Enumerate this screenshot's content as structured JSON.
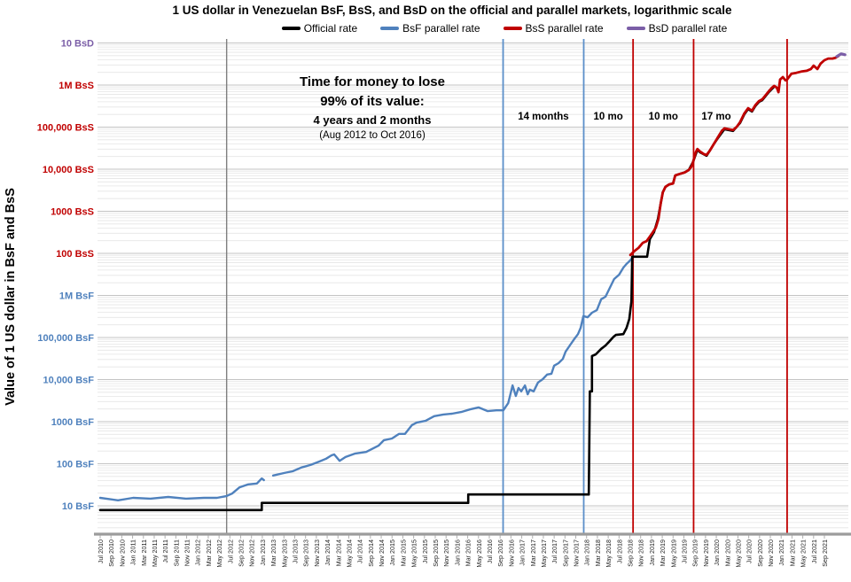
{
  "title": "1 US dollar in Venezuelan BsF, BsS, and BsD on the official and parallel markets, logarithmic scale",
  "y_axis_title": "Value of 1 US dollar in BsF and BsS",
  "legend": {
    "items": [
      {
        "label": "Official rate",
        "color": "#000000"
      },
      {
        "label": "BsF parallel rate",
        "color": "#4f81bd"
      },
      {
        "label": "BsS parallel rate",
        "color": "#c00000"
      },
      {
        "label": "BsD parallel rate",
        "color": "#7b5ea7"
      }
    ]
  },
  "annotation": {
    "lines": [
      "Time for money to lose",
      "99% of its value:",
      "4 years and 2 months",
      "(Aug 2012 to Oct 2016)"
    ]
  },
  "period_labels": [
    {
      "label": "14 months",
      "months": 82.0
    },
    {
      "label": "10 mo",
      "months": 94.0
    },
    {
      "label": "10 mo",
      "months": 104.2
    },
    {
      "label": "17 mo",
      "months": 114.0
    }
  ],
  "chart_data": {
    "type": "line",
    "log_scale": true,
    "x_unit": "months since Jul 2010 (tick step = 2 months)",
    "y_unit": "log10 of bolivares fuertes (BsF) per USD; 1 BsS = 100,000 BsF; 1 BsD = 1,000,000 BsS",
    "x_tick_labels": [
      "Jul 2010",
      "Sep 2010",
      "Nov 2010",
      "Jan 2011",
      "Mar 2011",
      "May 2011",
      "Jul 2011",
      "Sep 2011",
      "Nov 2011",
      "Jan 2012",
      "Mar 2012",
      "May 2012",
      "Jul 2012",
      "Sep 2012",
      "Nov 2012",
      "Jan 2013",
      "Mar 2013",
      "May 2013",
      "Jul 2013",
      "Sep 2013",
      "Nov 2013",
      "Jan 2014",
      "Mar 2014",
      "May 2014",
      "Jul 2014",
      "Sep 2014",
      "Nov 2014",
      "Jan 2015",
      "Mar 2015",
      "May 2015",
      "Jul 2015",
      "Sep 2015",
      "Nov 2015",
      "Jan 2016",
      "Mar 2016",
      "May 2016",
      "Jul 2016",
      "Sep 2016",
      "Nov 2016",
      "Jan 2017",
      "Mar 2017",
      "May 2017",
      "Jul 2017",
      "Sep 2017",
      "Nov 2017",
      "Jan 2018",
      "Mar 2018",
      "May 2018",
      "Jul 2018",
      "Sep 2018",
      "Nov 2018",
      "Jan 2019",
      "Mar 2019",
      "May 2019",
      "Jul 2019",
      "Sep 2019",
      "Nov 2019",
      "Jan 2020",
      "Mar 2020",
      "May 2020",
      "Jul 2020",
      "Sep 2020",
      "Nov 2020",
      "Jan 2021",
      "Mar 2021",
      "May 2021",
      "Jul 2021",
      "Sep 2021"
    ],
    "y_tick_labels": [
      {
        "text": "10 BsD",
        "color": "#7b5ea7",
        "log10_bsf": 12
      },
      {
        "text": "1M BsS",
        "color": "#c00000",
        "log10_bsf": 11
      },
      {
        "text": "100,000 BsS",
        "color": "#c00000",
        "log10_bsf": 10
      },
      {
        "text": "10,000 BsS",
        "color": "#c00000",
        "log10_bsf": 9
      },
      {
        "text": "1000 BsS",
        "color": "#c00000",
        "log10_bsf": 8
      },
      {
        "text": "100 BsS",
        "color": "#c00000",
        "log10_bsf": 7
      },
      {
        "text": "1M BsF",
        "color": "#4f81bd",
        "log10_bsf": 6
      },
      {
        "text": "100,000 BsF",
        "color": "#4f81bd",
        "log10_bsf": 5
      },
      {
        "text": "10,000 BsF",
        "color": "#4f81bd",
        "log10_bsf": 4
      },
      {
        "text": "1000 BsF",
        "color": "#4f81bd",
        "log10_bsf": 3
      },
      {
        "text": "100 BsF",
        "color": "#4f81bd",
        "log10_bsf": 2
      },
      {
        "text": "10 BsF",
        "color": "#4f81bd",
        "log10_bsf": 1
      }
    ],
    "reference_lines": [
      {
        "months": 23.4,
        "color": "#7f7f7f",
        "width": 1.4
      },
      {
        "months": 74.55,
        "color": "#5b8fc9",
        "width": 1.8
      },
      {
        "months": 89.47,
        "color": "#5b8fc9",
        "width": 1.8
      },
      {
        "months": 98.6,
        "color": "#c00000",
        "width": 1.8
      },
      {
        "months": 109.8,
        "color": "#c00000",
        "width": 1.8
      },
      {
        "months": 127.1,
        "color": "#c00000",
        "width": 1.8
      }
    ],
    "series": [
      {
        "name": "BsF parallel rate",
        "color": "#4f81bd",
        "width": 2.4,
        "segments": [
          [
            [
              0,
              1.19
            ],
            [
              3.3,
              1.13
            ],
            [
              6.1,
              1.19
            ],
            [
              9.3,
              1.17
            ],
            [
              12.6,
              1.21
            ],
            [
              15.9,
              1.17
            ],
            [
              19.2,
              1.19
            ],
            [
              21.6,
              1.19
            ],
            [
              23.3,
              1.23
            ],
            [
              24.4,
              1.29
            ],
            [
              25.8,
              1.44
            ],
            [
              27.4,
              1.51
            ],
            [
              29.0,
              1.53
            ],
            [
              29.9,
              1.65
            ],
            [
              30.3,
              1.61
            ]
          ],
          [
            [
              32.0,
              1.72
            ],
            [
              34.0,
              1.78
            ],
            [
              35.6,
              1.82
            ],
            [
              37.2,
              1.91
            ],
            [
              38.9,
              1.97
            ],
            [
              40.5,
              2.05
            ],
            [
              41.8,
              2.12
            ],
            [
              42.8,
              2.2
            ],
            [
              43.3,
              2.22
            ],
            [
              44.3,
              2.07
            ],
            [
              45.4,
              2.16
            ],
            [
              47.1,
              2.24
            ],
            [
              49.2,
              2.28
            ],
            [
              51.5,
              2.43
            ],
            [
              52.5,
              2.56
            ],
            [
              54.0,
              2.6
            ],
            [
              55.3,
              2.71
            ],
            [
              56.4,
              2.71
            ],
            [
              57.7,
              2.92
            ],
            [
              58.6,
              2.98
            ],
            [
              60.2,
              3.02
            ],
            [
              61.8,
              3.13
            ],
            [
              63.5,
              3.17
            ],
            [
              65.1,
              3.19
            ],
            [
              66.8,
              3.23
            ],
            [
              68.4,
              3.29
            ],
            [
              70.0,
              3.34
            ],
            [
              71.7,
              3.25
            ],
            [
              73.3,
              3.27
            ],
            [
              74.6,
              3.27
            ],
            [
              75.5,
              3.44
            ],
            [
              76.3,
              3.86
            ],
            [
              76.9,
              3.61
            ],
            [
              77.4,
              3.8
            ],
            [
              77.9,
              3.72
            ],
            [
              78.6,
              3.86
            ],
            [
              79.1,
              3.65
            ],
            [
              79.5,
              3.76
            ],
            [
              80.2,
              3.72
            ],
            [
              81.0,
              3.93
            ],
            [
              81.9,
              4.01
            ],
            [
              82.7,
              4.12
            ],
            [
              83.5,
              4.14
            ],
            [
              84.0,
              4.33
            ],
            [
              84.8,
              4.39
            ],
            [
              85.6,
              4.49
            ],
            [
              86.1,
              4.66
            ],
            [
              86.9,
              4.81
            ],
            [
              87.7,
              4.96
            ],
            [
              88.4,
              5.08
            ],
            [
              88.9,
              5.23
            ],
            [
              89.4,
              5.51
            ],
            [
              90.2,
              5.48
            ],
            [
              91.0,
              5.59
            ],
            [
              91.9,
              5.65
            ],
            [
              92.7,
              5.91
            ],
            [
              93.5,
              5.97
            ],
            [
              94.3,
              6.18
            ],
            [
              95.1,
              6.39
            ],
            [
              96.0,
              6.49
            ],
            [
              96.8,
              6.66
            ],
            [
              97.4,
              6.75
            ],
            [
              97.9,
              6.81
            ],
            [
              98.3,
              6.87
            ]
          ]
        ]
      },
      {
        "name": "Official rate",
        "color": "#000000",
        "width": 2.6,
        "segments": [
          [
            [
              0,
              0.9
            ],
            [
              29.9,
              0.9
            ],
            [
              29.9,
              1.07
            ],
            [
              68.1,
              1.07
            ],
            [
              68.1,
              1.27
            ],
            [
              90.4,
              1.27
            ],
            [
              90.6,
              3.72
            ],
            [
              91.0,
              3.72
            ],
            [
              91.0,
              4.56
            ],
            [
              91.7,
              4.6
            ],
            [
              92.7,
              4.73
            ],
            [
              93.5,
              4.81
            ],
            [
              94.1,
              4.89
            ],
            [
              95.0,
              5.02
            ],
            [
              95.4,
              5.06
            ],
            [
              96.8,
              5.08
            ],
            [
              97.4,
              5.23
            ],
            [
              97.9,
              5.44
            ],
            [
              98.3,
              5.86
            ],
            [
              98.45,
              6.92
            ],
            [
              101.2,
              6.92
            ],
            [
              101.7,
              7.34
            ],
            [
              102.5,
              7.51
            ],
            [
              103.2,
              7.82
            ],
            [
              103.7,
              8.18
            ],
            [
              104.1,
              8.45
            ],
            [
              104.6,
              8.58
            ],
            [
              105.3,
              8.64
            ],
            [
              106.0,
              8.66
            ],
            [
              106.4,
              8.85
            ],
            [
              107.3,
              8.89
            ],
            [
              108.1,
              8.92
            ],
            [
              108.9,
              8.98
            ],
            [
              109.7,
              9.17
            ],
            [
              110.5,
              9.46
            ],
            [
              111.0,
              9.4
            ],
            [
              112.2,
              9.32
            ],
            [
              112.8,
              9.44
            ],
            [
              113.5,
              9.59
            ],
            [
              114.3,
              9.74
            ],
            [
              115.5,
              9.95
            ],
            [
              116.3,
              9.93
            ],
            [
              117.1,
              9.91
            ],
            [
              118.4,
              10.1
            ],
            [
              119.2,
              10.31
            ],
            [
              119.9,
              10.43
            ],
            [
              120.6,
              10.37
            ],
            [
              121.2,
              10.5
            ],
            [
              121.9,
              10.6
            ],
            [
              122.5,
              10.64
            ],
            [
              123.7,
              10.83
            ],
            [
              124.7,
              10.96
            ]
          ]
        ]
      },
      {
        "name": "BsS parallel rate",
        "color": "#c00000",
        "width": 2.8,
        "segments": [
          [
            [
              98.1,
              6.96
            ],
            [
              98.7,
              7.04
            ],
            [
              99.6,
              7.13
            ],
            [
              100.4,
              7.25
            ],
            [
              101.1,
              7.29
            ],
            [
              101.7,
              7.4
            ],
            [
              102.3,
              7.51
            ],
            [
              102.8,
              7.61
            ],
            [
              103.3,
              7.82
            ],
            [
              103.7,
              8.18
            ],
            [
              104.1,
              8.45
            ],
            [
              104.6,
              8.58
            ],
            [
              105.3,
              8.64
            ],
            [
              106.0,
              8.66
            ],
            [
              106.4,
              8.85
            ],
            [
              107.3,
              8.89
            ],
            [
              108.1,
              8.92
            ],
            [
              108.9,
              8.98
            ],
            [
              109.4,
              9.06
            ],
            [
              109.7,
              9.17
            ],
            [
              110.2,
              9.4
            ],
            [
              110.5,
              9.48
            ],
            [
              111.0,
              9.42
            ],
            [
              111.7,
              9.36
            ],
            [
              112.2,
              9.34
            ],
            [
              112.8,
              9.44
            ],
            [
              113.5,
              9.59
            ],
            [
              114.3,
              9.76
            ],
            [
              115.0,
              9.91
            ],
            [
              115.5,
              9.97
            ],
            [
              116.3,
              9.95
            ],
            [
              117.1,
              9.93
            ],
            [
              117.8,
              10.01
            ],
            [
              118.4,
              10.12
            ],
            [
              119.2,
              10.33
            ],
            [
              119.9,
              10.45
            ],
            [
              120.6,
              10.39
            ],
            [
              121.2,
              10.52
            ],
            [
              121.9,
              10.62
            ],
            [
              122.5,
              10.66
            ],
            [
              123.2,
              10.77
            ],
            [
              123.7,
              10.85
            ],
            [
              124.3,
              10.94
            ],
            [
              124.7,
              10.98
            ],
            [
              125.2,
              10.94
            ],
            [
              125.5,
              10.83
            ],
            [
              125.8,
              11.13
            ],
            [
              126.3,
              11.19
            ],
            [
              126.8,
              11.11
            ],
            [
              127.1,
              11.13
            ],
            [
              127.9,
              11.27
            ],
            [
              128.8,
              11.29
            ],
            [
              129.7,
              11.32
            ],
            [
              130.7,
              11.34
            ],
            [
              131.5,
              11.38
            ],
            [
              132.0,
              11.46
            ],
            [
              132.7,
              11.38
            ],
            [
              133.3,
              11.51
            ],
            [
              134.0,
              11.59
            ],
            [
              134.7,
              11.63
            ],
            [
              135.5,
              11.63
            ],
            [
              136.1,
              11.65
            ],
            [
              136.6,
              11.69
            ]
          ]
        ]
      },
      {
        "name": "BsD parallel rate",
        "color": "#7b5ea7",
        "width": 3.2,
        "segments": [
          [
            [
              136.3,
              11.68
            ],
            [
              137.1,
              11.74
            ],
            [
              137.8,
              11.72
            ]
          ]
        ]
      }
    ]
  }
}
